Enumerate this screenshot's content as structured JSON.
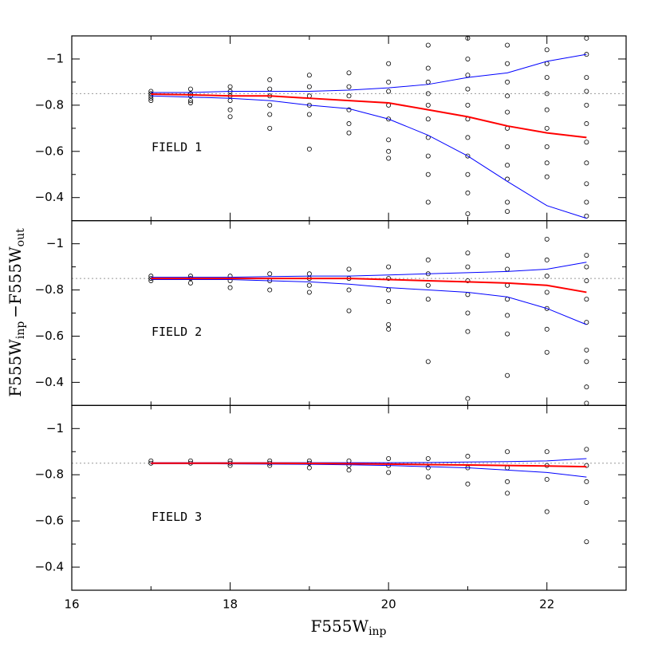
{
  "chart_data": [
    {
      "type": "scatter",
      "annotation": "FIELD 1",
      "ylim": [
        -0.3,
        -1.1
      ],
      "yticks": [
        {
          "value": -1,
          "label": "−1"
        },
        {
          "value": -0.8,
          "label": "−0.8"
        },
        {
          "value": -0.6,
          "label": "−0.6"
        },
        {
          "value": -0.4,
          "label": "−0.4"
        }
      ],
      "yminor": [
        -0.9,
        -0.7,
        -0.5
      ],
      "hline": -0.85,
      "hline_color": "#999999",
      "x": [
        17,
        17.5,
        18,
        18.5,
        19,
        19.5,
        20,
        20.5,
        21,
        21.5,
        22,
        22.5
      ],
      "series": [
        {
          "color": "#0000ff",
          "width": 1,
          "values": [
            -0.855,
            -0.855,
            -0.86,
            -0.86,
            -0.86,
            -0.865,
            -0.875,
            -0.89,
            -0.92,
            -0.94,
            -0.99,
            -1.02
          ]
        },
        {
          "color": "#0000ff",
          "width": 1,
          "values": [
            -0.84,
            -0.835,
            -0.83,
            -0.82,
            -0.8,
            -0.785,
            -0.74,
            -0.67,
            -0.58,
            -0.47,
            -0.365,
            -0.31
          ]
        },
        {
          "color": "#ff0000",
          "width": 2,
          "values": [
            -0.848,
            -0.845,
            -0.84,
            -0.84,
            -0.83,
            -0.82,
            -0.81,
            -0.78,
            -0.75,
            -0.71,
            -0.68,
            -0.66
          ]
        }
      ],
      "columns": [
        {
          "x": 17,
          "y": [
            -0.86,
            -0.85,
            -0.84,
            -0.83,
            -0.82
          ]
        },
        {
          "x": 17.5,
          "y": [
            -0.87,
            -0.85,
            -0.84,
            -0.82,
            -0.81
          ]
        },
        {
          "x": 18,
          "y": [
            -0.88,
            -0.86,
            -0.84,
            -0.82,
            -0.78,
            -0.75
          ]
        },
        {
          "x": 18.5,
          "y": [
            -0.91,
            -0.87,
            -0.84,
            -0.8,
            -0.76,
            -0.7
          ]
        },
        {
          "x": 19,
          "y": [
            -0.93,
            -0.88,
            -0.84,
            -0.8,
            -0.76,
            -0.61
          ]
        },
        {
          "x": 19.5,
          "y": [
            -0.94,
            -0.88,
            -0.84,
            -0.78,
            -0.72,
            -0.68
          ]
        },
        {
          "x": 20,
          "y": [
            -0.98,
            -0.9,
            -0.86,
            -0.8,
            -0.74,
            -0.65,
            -0.6,
            -0.57
          ]
        },
        {
          "x": 20.5,
          "y": [
            -1.06,
            -0.96,
            -0.9,
            -0.85,
            -0.8,
            -0.74,
            -0.66,
            -0.58,
            -0.5,
            -0.38
          ]
        },
        {
          "x": 21,
          "y": [
            -1.09,
            -1.0,
            -0.93,
            -0.87,
            -0.8,
            -0.74,
            -0.66,
            -0.58,
            -0.5,
            -0.42,
            -0.33
          ]
        },
        {
          "x": 21.5,
          "y": [
            -1.06,
            -0.98,
            -0.9,
            -0.84,
            -0.77,
            -0.7,
            -0.62,
            -0.54,
            -0.48,
            -0.38,
            -0.34
          ]
        },
        {
          "x": 22,
          "y": [
            -1.04,
            -0.98,
            -0.92,
            -0.85,
            -0.78,
            -0.7,
            -0.62,
            -0.55,
            -0.49
          ]
        },
        {
          "x": 22.5,
          "y": [
            -1.09,
            -1.02,
            -0.92,
            -0.86,
            -0.8,
            -0.72,
            -0.64,
            -0.55,
            -0.46,
            -0.38,
            -0.32
          ]
        }
      ]
    },
    {
      "type": "scatter",
      "annotation": "FIELD 2",
      "ylim": [
        -0.3,
        -1.1
      ],
      "yticks": [
        {
          "value": -1,
          "label": "−1"
        },
        {
          "value": -0.8,
          "label": "−0.8"
        },
        {
          "value": -0.6,
          "label": "−0.6"
        },
        {
          "value": -0.4,
          "label": "−0.4"
        }
      ],
      "yminor": [
        -0.9,
        -0.7,
        -0.5
      ],
      "hline": -0.85,
      "hline_color": "#999999",
      "ylabel": [
        "F555W",
        "inp",
        "−F555W",
        "out"
      ],
      "x": [
        17,
        17.5,
        18,
        18.5,
        19,
        19.5,
        20,
        20.5,
        21,
        21.5,
        22,
        22.5
      ],
      "series": [
        {
          "color": "#0000ff",
          "width": 1,
          "values": [
            -0.855,
            -0.855,
            -0.855,
            -0.858,
            -0.86,
            -0.86,
            -0.865,
            -0.87,
            -0.875,
            -0.88,
            -0.89,
            -0.92
          ]
        },
        {
          "color": "#0000ff",
          "width": 1,
          "values": [
            -0.845,
            -0.845,
            -0.845,
            -0.84,
            -0.835,
            -0.825,
            -0.81,
            -0.8,
            -0.79,
            -0.77,
            -0.72,
            -0.65
          ]
        },
        {
          "color": "#ff0000",
          "width": 2,
          "values": [
            -0.85,
            -0.85,
            -0.85,
            -0.85,
            -0.85,
            -0.85,
            -0.845,
            -0.84,
            -0.835,
            -0.83,
            -0.82,
            -0.79
          ]
        }
      ],
      "columns": [
        {
          "x": 17,
          "y": [
            -0.86,
            -0.85,
            -0.84
          ]
        },
        {
          "x": 17.5,
          "y": [
            -0.86,
            -0.85,
            -0.83
          ]
        },
        {
          "x": 18,
          "y": [
            -0.86,
            -0.84,
            -0.81
          ]
        },
        {
          "x": 18.5,
          "y": [
            -0.87,
            -0.84,
            -0.8
          ]
        },
        {
          "x": 19,
          "y": [
            -0.87,
            -0.85,
            -0.82,
            -0.79
          ]
        },
        {
          "x": 19.5,
          "y": [
            -0.89,
            -0.85,
            -0.8,
            -0.71
          ]
        },
        {
          "x": 20,
          "y": [
            -0.9,
            -0.85,
            -0.8,
            -0.75,
            -0.65,
            -0.63
          ]
        },
        {
          "x": 20.5,
          "y": [
            -0.93,
            -0.87,
            -0.82,
            -0.76,
            -0.49
          ]
        },
        {
          "x": 21,
          "y": [
            -0.96,
            -0.9,
            -0.84,
            -0.78,
            -0.7,
            -0.62,
            -0.33
          ]
        },
        {
          "x": 21.5,
          "y": [
            -0.95,
            -0.89,
            -0.82,
            -0.76,
            -0.69,
            -0.61,
            -0.43
          ]
        },
        {
          "x": 22,
          "y": [
            -1.02,
            -0.93,
            -0.86,
            -0.79,
            -0.72,
            -0.63,
            -0.53
          ]
        },
        {
          "x": 22.5,
          "y": [
            -0.95,
            -0.9,
            -0.84,
            -0.76,
            -0.66,
            -0.54,
            -0.49,
            -0.38,
            -0.31
          ]
        }
      ]
    },
    {
      "type": "scatter",
      "annotation": "FIELD 3",
      "ylim": [
        -0.3,
        -1.1
      ],
      "yticks": [
        {
          "value": -1,
          "label": "−1"
        },
        {
          "value": -0.8,
          "label": "−0.8"
        },
        {
          "value": -0.6,
          "label": "−0.6"
        },
        {
          "value": -0.4,
          "label": "−0.4"
        }
      ],
      "yminor": [
        -0.9,
        -0.7,
        -0.5
      ],
      "hline": -0.85,
      "hline_color": "#999999",
      "xlim": [
        16,
        23
      ],
      "xticks": [
        16,
        18,
        20,
        22
      ],
      "xminor": [
        17,
        19,
        21,
        23
      ],
      "xlabel": [
        "F555W",
        "inp"
      ],
      "x": [
        17,
        17.5,
        18,
        18.5,
        19,
        19.5,
        20,
        20.5,
        21,
        21.5,
        22,
        22.5
      ],
      "series": [
        {
          "color": "#0000ff",
          "width": 1,
          "values": [
            -0.852,
            -0.852,
            -0.852,
            -0.852,
            -0.852,
            -0.852,
            -0.852,
            -0.853,
            -0.855,
            -0.857,
            -0.86,
            -0.87
          ]
        },
        {
          "color": "#0000ff",
          "width": 1,
          "values": [
            -0.848,
            -0.848,
            -0.847,
            -0.846,
            -0.845,
            -0.843,
            -0.84,
            -0.835,
            -0.83,
            -0.82,
            -0.81,
            -0.79
          ]
        },
        {
          "color": "#ff0000",
          "width": 2,
          "values": [
            -0.85,
            -0.85,
            -0.85,
            -0.85,
            -0.849,
            -0.848,
            -0.846,
            -0.844,
            -0.842,
            -0.84,
            -0.838,
            -0.835
          ]
        }
      ],
      "columns": [
        {
          "x": 17,
          "y": [
            -0.86,
            -0.85
          ]
        },
        {
          "x": 17.5,
          "y": [
            -0.86,
            -0.85
          ]
        },
        {
          "x": 18,
          "y": [
            -0.86,
            -0.85,
            -0.84
          ]
        },
        {
          "x": 18.5,
          "y": [
            -0.86,
            -0.85,
            -0.84
          ]
        },
        {
          "x": 19,
          "y": [
            -0.86,
            -0.85,
            -0.83
          ]
        },
        {
          "x": 19.5,
          "y": [
            -0.86,
            -0.84,
            -0.82
          ]
        },
        {
          "x": 20,
          "y": [
            -0.87,
            -0.84,
            -0.81
          ]
        },
        {
          "x": 20.5,
          "y": [
            -0.87,
            -0.83,
            -0.79
          ]
        },
        {
          "x": 21,
          "y": [
            -0.88,
            -0.83,
            -0.76
          ]
        },
        {
          "x": 21.5,
          "y": [
            -0.9,
            -0.83,
            -0.77,
            -0.72
          ]
        },
        {
          "x": 22,
          "y": [
            -0.9,
            -0.84,
            -0.78,
            -0.64
          ]
        },
        {
          "x": 22.5,
          "y": [
            -0.91,
            -0.84,
            -0.77,
            -0.68,
            -0.51
          ]
        }
      ]
    }
  ]
}
